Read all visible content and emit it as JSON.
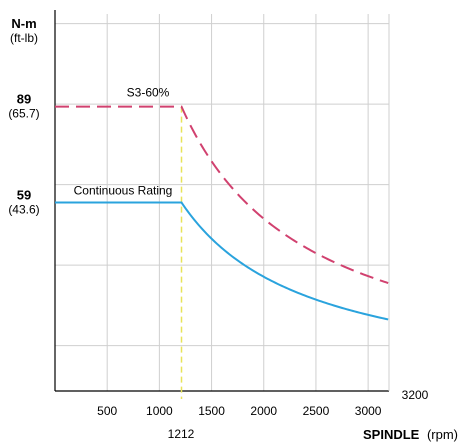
{
  "chart_data": {
    "type": "line",
    "title": "",
    "ylabel_metric": "N-m",
    "ylabel_imperial": "(ft-lb)",
    "xlabel_bold": "SPINDLE",
    "xlabel_unit": "(rpm)",
    "xlim": [
      0,
      3200
    ],
    "ylim": [
      0,
      118
    ],
    "x_ticks": [
      500,
      1000,
      1500,
      2000,
      2500,
      3000
    ],
    "x_tick_labels": [
      "500",
      "1000",
      "1500",
      "2000",
      "2500",
      "3000"
    ],
    "x_end_label": "3200",
    "x_extra_tick": {
      "value": 1212,
      "label": "1212"
    },
    "y_ticks": [
      {
        "value": 89,
        "metric": "89",
        "imperial": "(65.7)"
      },
      {
        "value": 59,
        "metric": "59",
        "imperial": "(43.6)"
      }
    ],
    "grid": true,
    "grid_x": [
      500,
      1000,
      1500,
      2000,
      2500,
      3000
    ],
    "grid_y": [
      14.2,
      39.4,
      64.6,
      89.8,
      115
    ],
    "series": [
      {
        "name": "S3-60%",
        "style": "dashed",
        "color": "#d1416f",
        "x": [
          0,
          1212,
          1500,
          2000,
          2500,
          3000,
          3200
        ],
        "y": [
          89,
          89,
          71.9,
          53.9,
          43.1,
          35.9,
          33.7
        ]
      },
      {
        "name": "Continuous Rating",
        "style": "solid",
        "color": "#2aa3dd",
        "x": [
          0,
          1212,
          1500,
          2000,
          2500,
          3000,
          3200
        ],
        "y": [
          59,
          59,
          47.7,
          35.8,
          28.6,
          23.8,
          22.3
        ]
      }
    ],
    "annotations": [
      {
        "text": "1212",
        "type": "vertical-line",
        "x": 1212,
        "color": "#e8e35a"
      }
    ]
  }
}
